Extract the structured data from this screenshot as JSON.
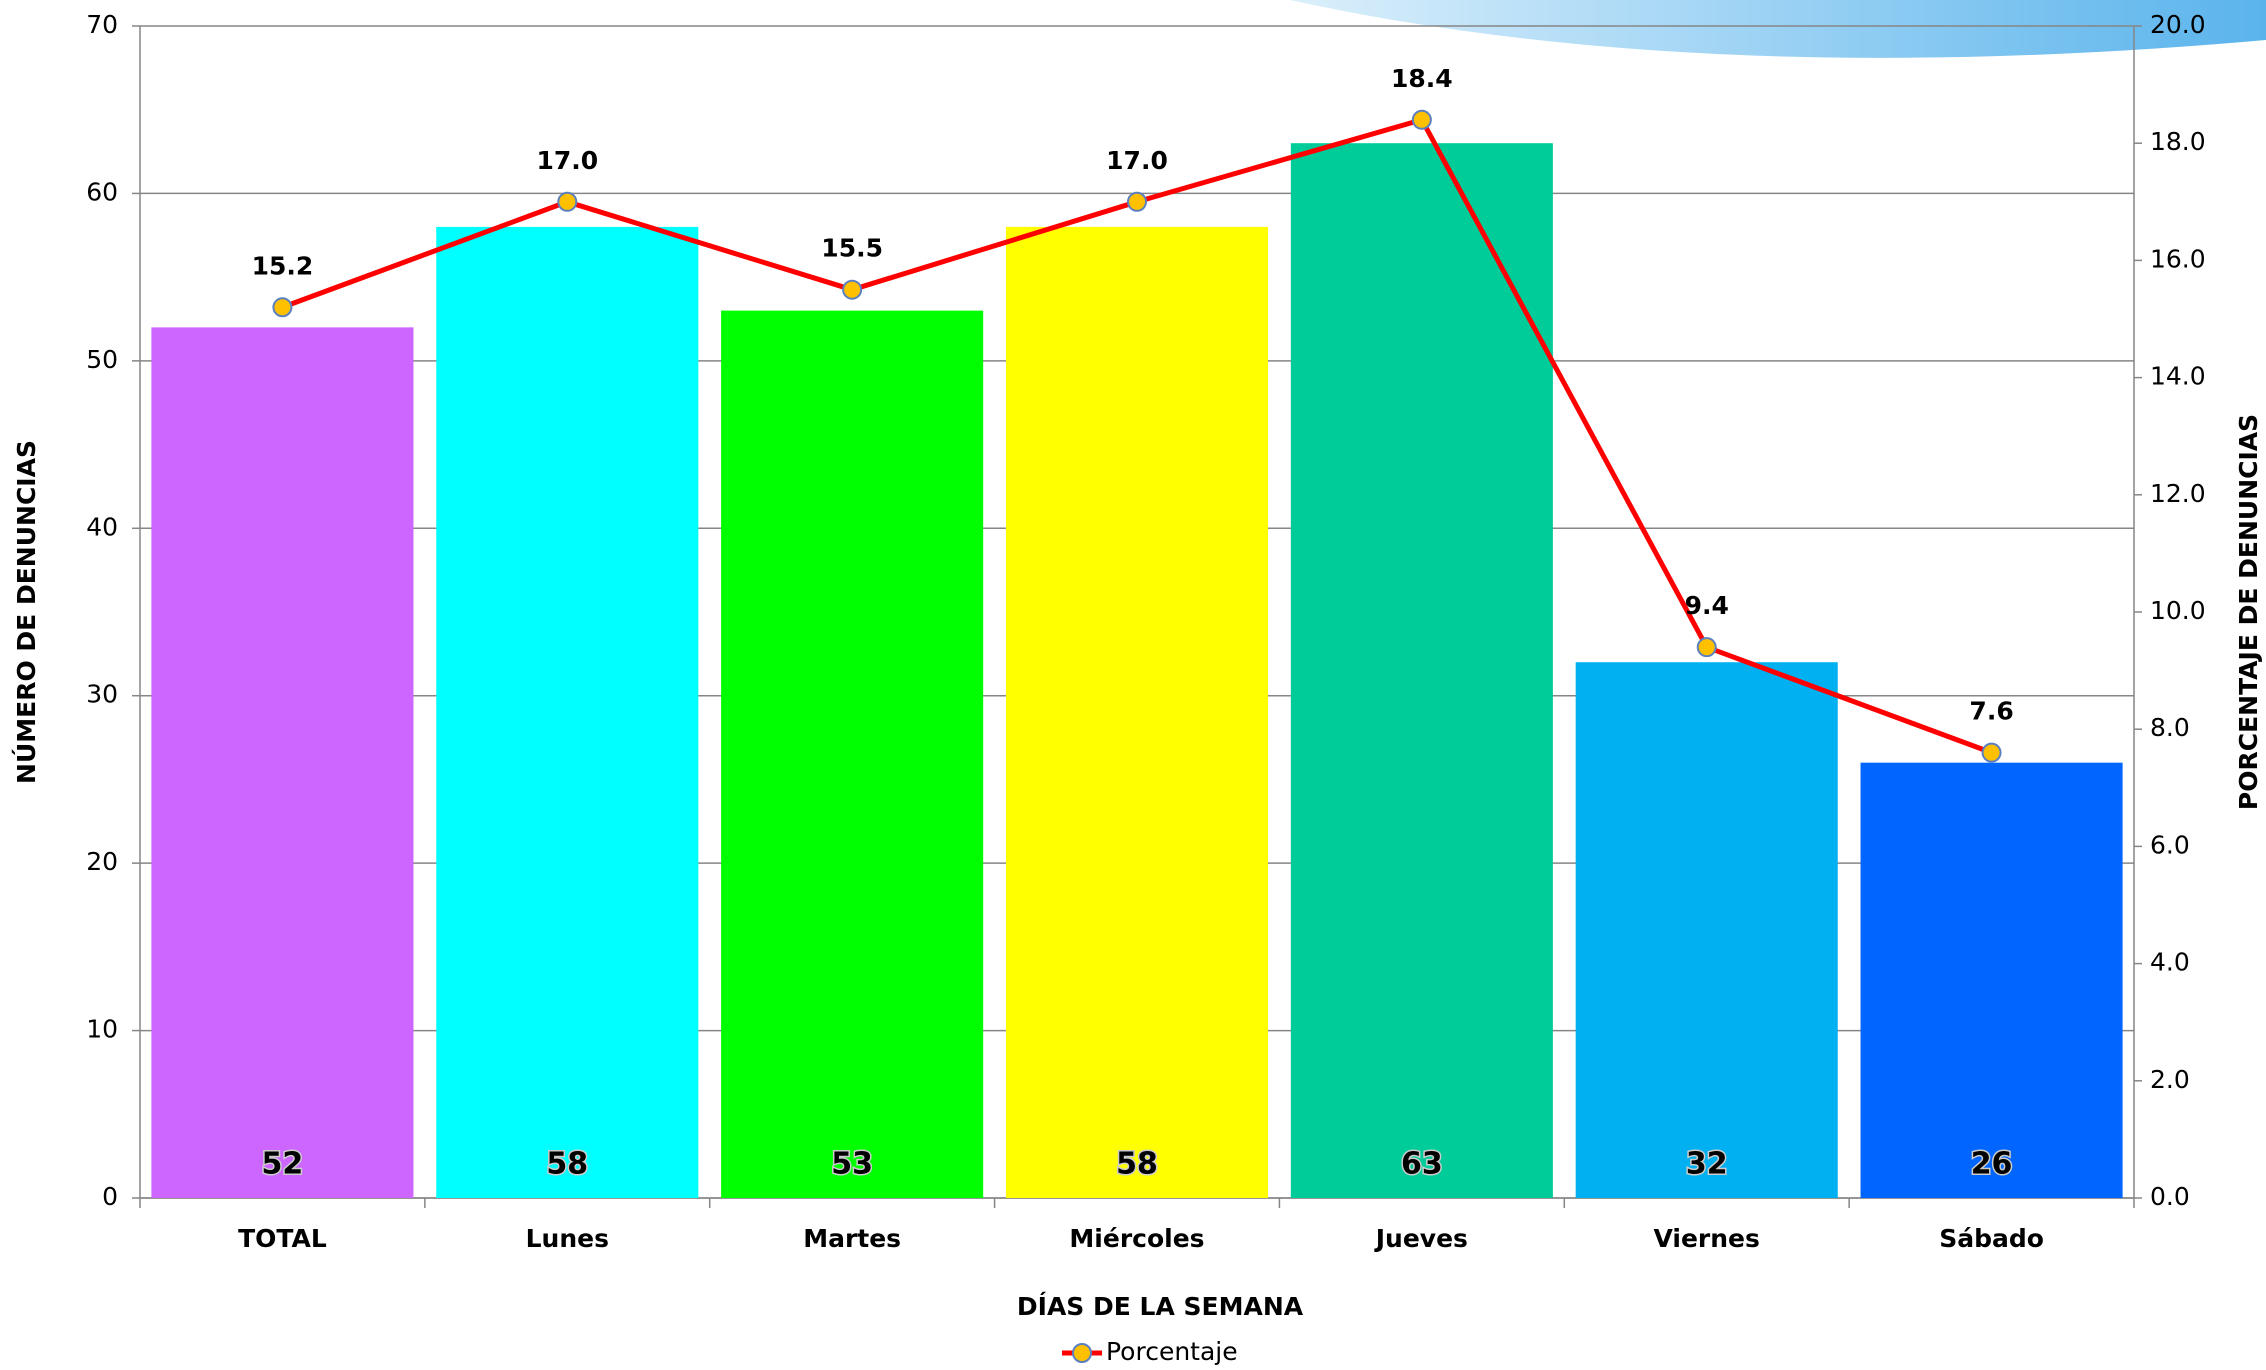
{
  "chart_data": {
    "type": "bar",
    "x_label": "DÍAS DE LA SEMANA",
    "y_label": "NÚMERO DE DENUNCIAS",
    "y2_label": "PORCENTAJE DE DENUNCIAS",
    "categories": [
      "TOTAL",
      "Lunes",
      "Martes",
      "Miércoles",
      "Jueves",
      "Viernes",
      "Sábado"
    ],
    "series": [
      {
        "type": "bar",
        "colors": [
          "#cc66ff",
          "#00ffff",
          "#00ff00",
          "#ffff00",
          "#00cc99",
          "#00b0f0",
          "#0066ff"
        ],
        "values": [
          52,
          58,
          53,
          58,
          63,
          32,
          26
        ]
      },
      {
        "type": "line",
        "name": "Porcentaje",
        "color": "#ff0000",
        "marker_color": "#ffc000",
        "axis": "y2",
        "values": [
          15.2,
          17.0,
          15.5,
          17.0,
          18.4,
          9.4,
          7.6
        ],
        "value_labels": [
          "15.2",
          "17.0",
          "15.5",
          "17.0",
          "18.4",
          "9.4",
          "7.6"
        ]
      }
    ],
    "ylim": [
      0,
      70
    ],
    "yticks": [
      0,
      10,
      20,
      30,
      40,
      50,
      60,
      70
    ],
    "y2lim": [
      0,
      20
    ],
    "y2ticks": [
      {
        "value": 0,
        "label": "0.0"
      },
      {
        "value": 2,
        "label": "2.0"
      },
      {
        "value": 4,
        "label": "4.0"
      },
      {
        "value": 6,
        "label": "6.0"
      },
      {
        "value": 8,
        "label": "8.0"
      },
      {
        "value": 10,
        "label": "10.0"
      },
      {
        "value": 12,
        "label": "12.0"
      },
      {
        "value": 14,
        "label": "14.0"
      },
      {
        "value": 16,
        "label": "16.0"
      },
      {
        "value": 18,
        "label": "18.0"
      },
      {
        "value": 20,
        "label": "20.0"
      }
    ],
    "grid": true,
    "legend": "bottom"
  }
}
